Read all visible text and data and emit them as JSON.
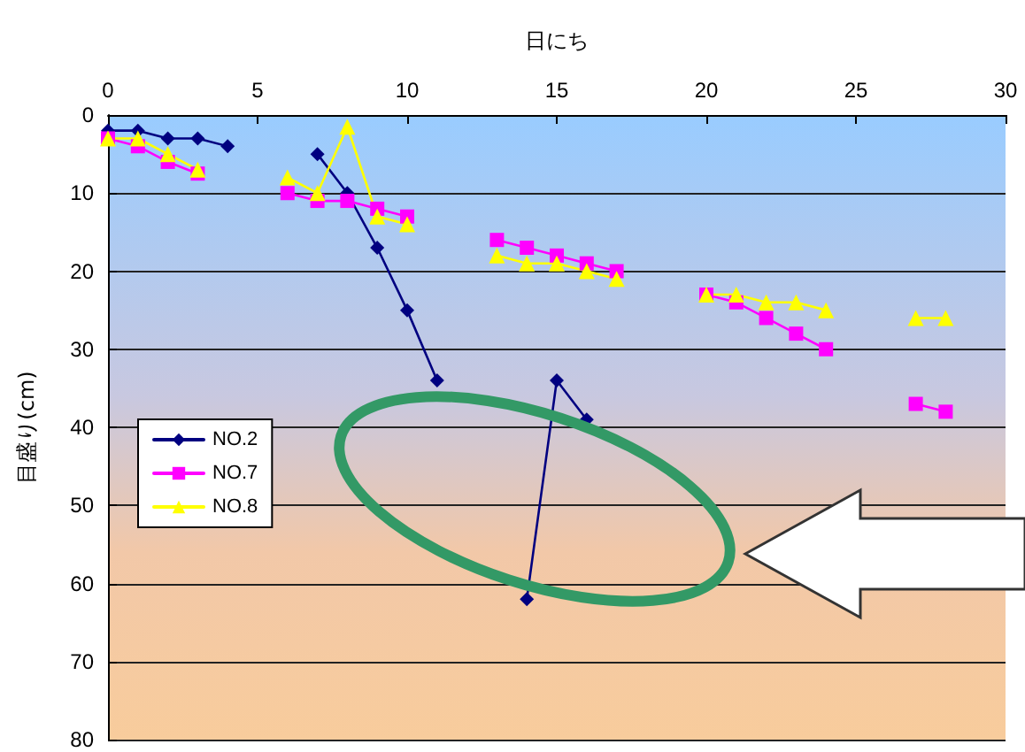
{
  "chart_data": {
    "type": "line",
    "xlabel": "日にち",
    "ylabel": "目盛り(cm)",
    "x": [
      0,
      1,
      2,
      3,
      4,
      5,
      6,
      7,
      8,
      9,
      10,
      11,
      12,
      13,
      14,
      15,
      16,
      17,
      18,
      19,
      20,
      21,
      22,
      23,
      24,
      25,
      26,
      27,
      28
    ],
    "series": [
      {
        "name": "NO.2",
        "color": "#000080",
        "marker": "diamond",
        "values": [
          2,
          2,
          3,
          3,
          4,
          null,
          null,
          5,
          10,
          17,
          25,
          34,
          null,
          null,
          62,
          34,
          39,
          null,
          null,
          null,
          null,
          null,
          null,
          null,
          null,
          null,
          null,
          null,
          null
        ]
      },
      {
        "name": "NO.7",
        "color": "#ff00ff",
        "marker": "square",
        "values": [
          3,
          4,
          6,
          7.5,
          null,
          null,
          10,
          11,
          11,
          12,
          13,
          null,
          null,
          16,
          17,
          18,
          19,
          20,
          null,
          null,
          23,
          24,
          26,
          28,
          30,
          null,
          null,
          37,
          38
        ]
      },
      {
        "name": "NO.8",
        "color": "#ffff00",
        "marker": "triangle",
        "values": [
          3,
          3,
          5,
          7,
          null,
          null,
          8,
          10,
          1.5,
          13,
          14,
          null,
          null,
          18,
          19,
          19,
          20,
          21,
          null,
          null,
          23,
          23,
          24,
          24,
          25,
          null,
          null,
          26,
          26
        ]
      }
    ],
    "xlim": [
      0,
      30
    ],
    "xticks": [
      0,
      5,
      10,
      15,
      20,
      25,
      30
    ],
    "ylim": [
      80,
      0
    ],
    "yticks": [
      0,
      10,
      20,
      30,
      40,
      50,
      60,
      70,
      80
    ],
    "grid": "y",
    "legend": "left"
  }
}
